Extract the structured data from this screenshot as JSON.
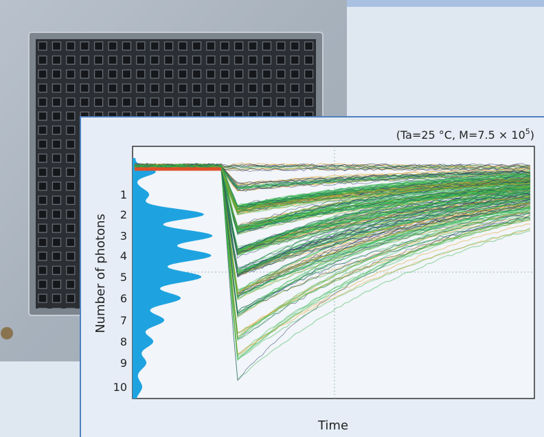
{
  "annotation": {
    "prefix": "(Ta=25 °C, M=7.5 × 10",
    "superscript": "5",
    "suffix": ")"
  },
  "y_axis_label": "Number of photons",
  "x_axis_label": "Time",
  "y_labels": [
    "1",
    "2",
    "3",
    "4",
    "5",
    "6",
    "7",
    "8",
    "9",
    "10"
  ]
}
